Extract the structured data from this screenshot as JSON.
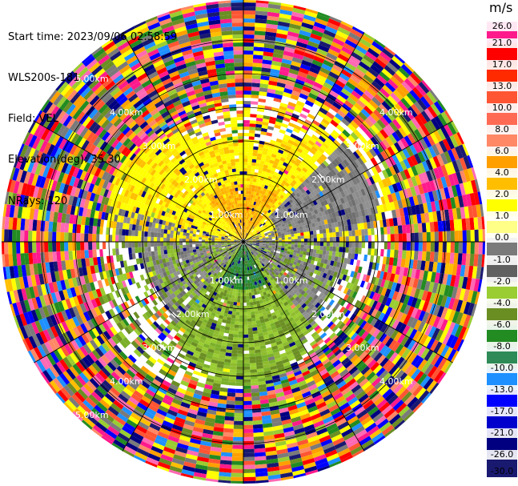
{
  "info": {
    "start_time": "Start time: 2023/09/06 02:58:59",
    "instrument": "WLS200s-181",
    "field": "Field: VEL",
    "elevation": "Elevation(deg): 35.30",
    "nrays": "NRays: 120"
  },
  "colorbar": {
    "unit": "m/s",
    "labels": [
      "26.0",
      "21.0",
      "17.0",
      "13.0",
      "10.0",
      "8.0",
      "6.0",
      "4.0",
      "2.0",
      "1.0",
      "0.0",
      "-1.0",
      "-2.0",
      "-4.0",
      "-6.0",
      "-8.0",
      "-10.0",
      "-13.0",
      "-17.0",
      "-21.0",
      "-26.0",
      "-30.0"
    ],
    "colors": [
      "#ff1a8c",
      "#ff0000",
      "#ff2a00",
      "#ff5533",
      "#ff6a55",
      "#ff8866",
      "#ff9f00",
      "#ffbf00",
      "#ffff00",
      "#ffff88",
      "#7a7a7a",
      "#606060",
      "#9acd32",
      "#6b8e23",
      "#228b22",
      "#2e8b57",
      "#1e90ff",
      "#0000ff",
      "#0000cd",
      "#000080",
      "#191970"
    ]
  },
  "ring_labels": {
    "r1": "1.00km",
    "r2": "2.00km",
    "r3": "3.00km",
    "r4": "4.00km",
    "r5": "5.00km"
  }
}
